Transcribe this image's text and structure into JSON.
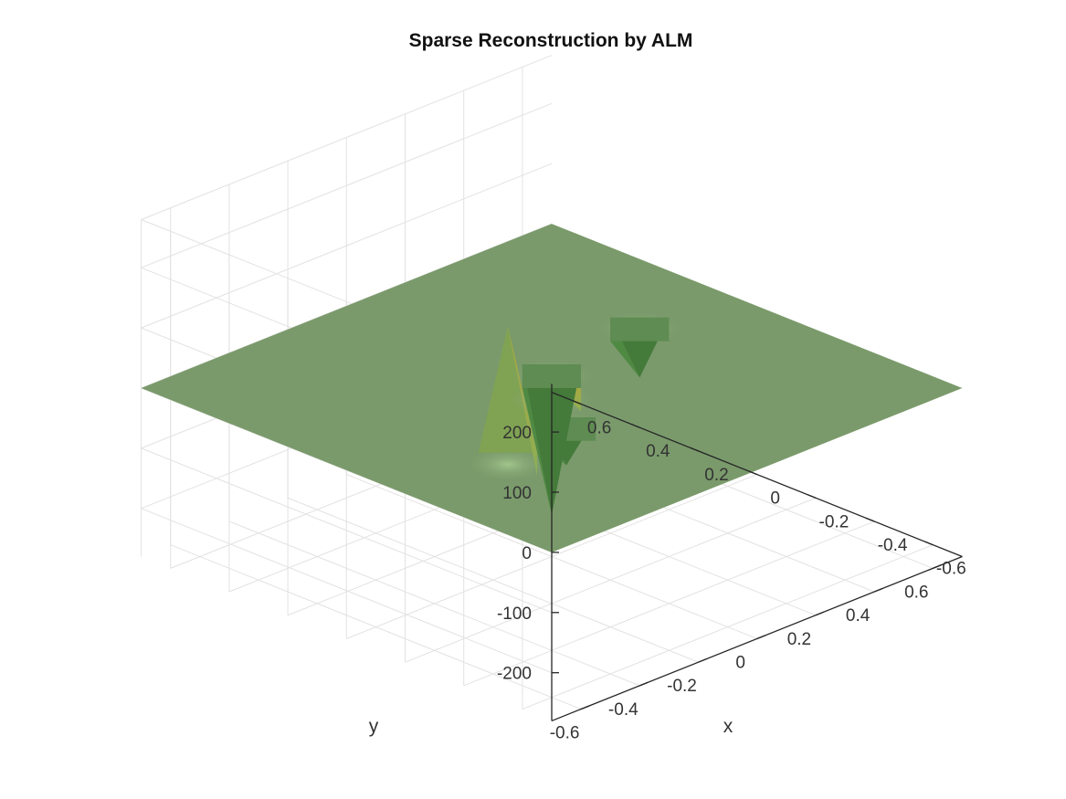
{
  "chart_data": {
    "type": "surface",
    "title": "Sparse Reconstruction by ALM",
    "xlabel": "x",
    "ylabel": "y",
    "zlabel": "",
    "xlim": [
      -0.7,
      0.7
    ],
    "ylim": [
      -0.7,
      0.7
    ],
    "zlim": [
      -280,
      280
    ],
    "x_ticks": [
      "-0.6",
      "-0.4",
      "-0.2",
      "0",
      "0.2",
      "0.4",
      "0.6"
    ],
    "y_ticks": [
      "-0.6",
      "-0.4",
      "-0.2",
      "0",
      "0.2",
      "0.4",
      "0.6"
    ],
    "z_ticks": [
      "-200",
      "-100",
      "0",
      "100",
      "200"
    ],
    "grid": true,
    "view": "isometric, azimuth -45°",
    "surface_color": "#7a9a6b",
    "baseline_z": 0,
    "spikes": [
      {
        "x": -0.25,
        "y": -0.4,
        "z": 230
      },
      {
        "x": 0.05,
        "y": 0.05,
        "z": -230
      },
      {
        "x": -0.2,
        "y": -0.15,
        "z": -60
      },
      {
        "x": 0.1,
        "y": 0.4,
        "z": -80
      },
      {
        "x": -0.05,
        "y": -0.05,
        "z": 30
      }
    ]
  }
}
